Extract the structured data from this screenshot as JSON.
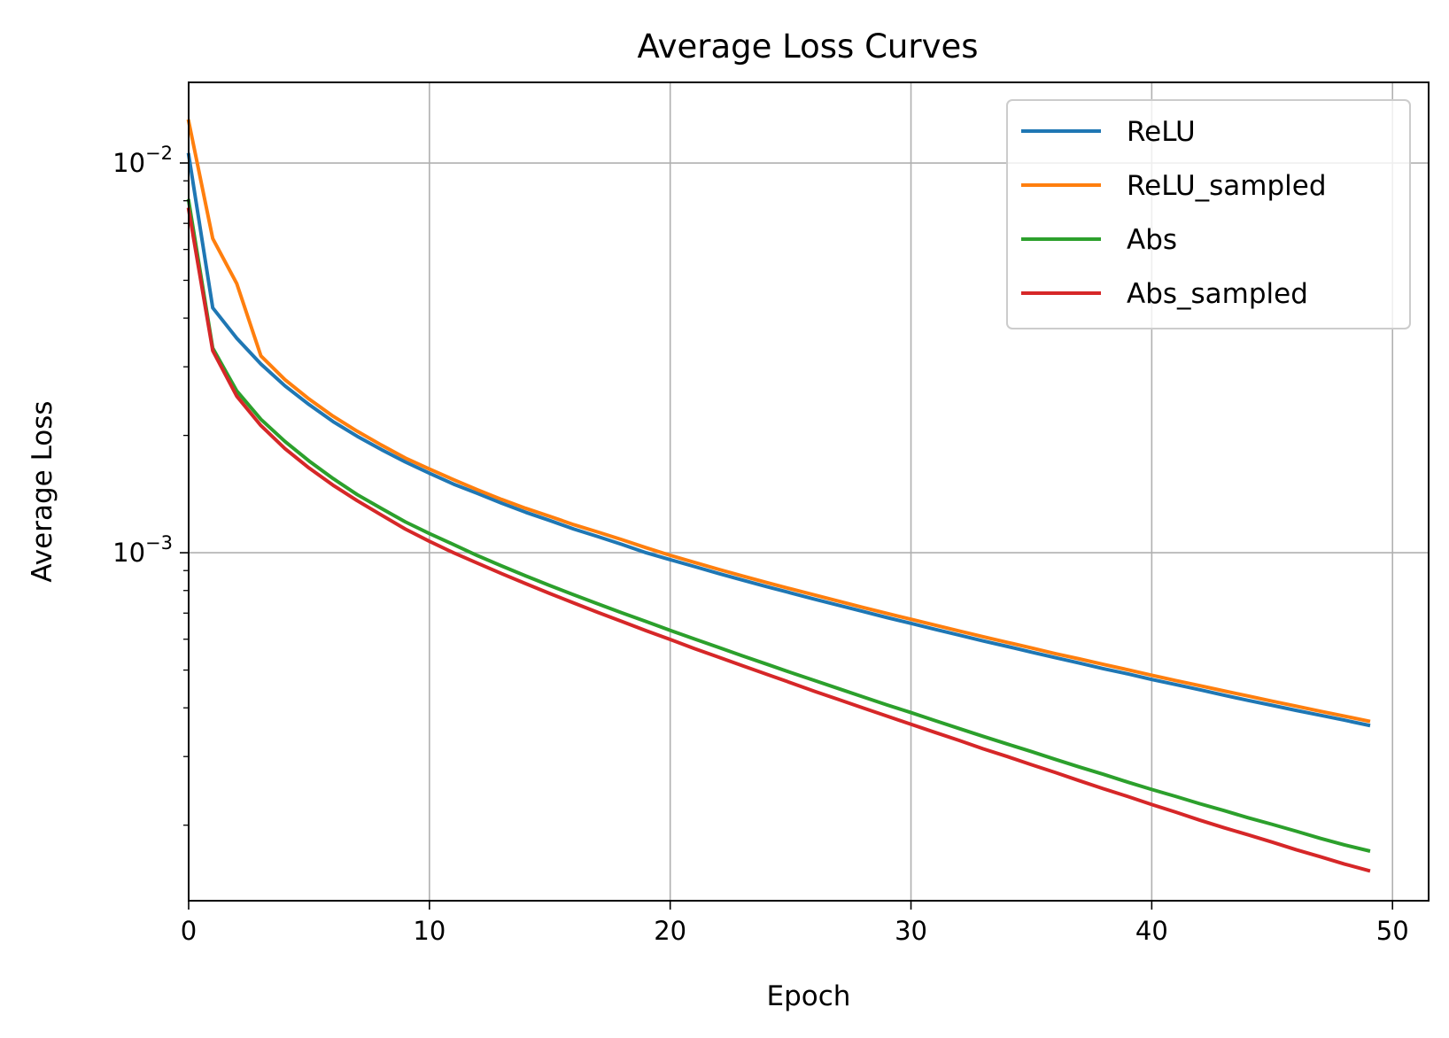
{
  "chart_data": {
    "type": "line",
    "title": "Average Loss Curves",
    "xlabel": "Epoch",
    "ylabel": "Average Loss",
    "yscale": "log",
    "xlim": [
      0,
      51.5
    ],
    "ylim": [
      0.000128,
      0.0161
    ],
    "x_ticks": [
      0,
      10,
      20,
      30,
      40,
      50
    ],
    "x_tick_labels": [
      "0",
      "10",
      "20",
      "30",
      "40",
      "50"
    ],
    "y_major_ticks": [
      0.001,
      0.01
    ],
    "y_tick_labels": [
      {
        "base": "10",
        "exp": "−3"
      },
      {
        "base": "10",
        "exp": "−2"
      }
    ],
    "grid": true,
    "legend_position": "top-right",
    "x": [
      0,
      1,
      2,
      3,
      4,
      5,
      6,
      7,
      8,
      9,
      10,
      11,
      12,
      13,
      14,
      15,
      16,
      17,
      18,
      19,
      20,
      21,
      22,
      23,
      24,
      25,
      26,
      27,
      28,
      29,
      30,
      31,
      32,
      33,
      34,
      35,
      36,
      37,
      38,
      39,
      40,
      41,
      42,
      43,
      44,
      45,
      46,
      47,
      48,
      49
    ],
    "series": [
      {
        "name": "ReLU",
        "color": "#1f77b4",
        "values": [
          0.0105,
          0.00425,
          0.00355,
          0.00305,
          0.00268,
          0.0024,
          0.00217,
          0.00199,
          0.00184,
          0.00171,
          0.0016,
          0.0015,
          0.00142,
          0.00134,
          0.00127,
          0.00121,
          0.00115,
          0.0011,
          0.00105,
          0.001,
          0.00096,
          0.000922,
          0.000885,
          0.000851,
          0.000819,
          0.000789,
          0.00076,
          0.000733,
          0.000707,
          0.000682,
          0.000659,
          0.000636,
          0.000615,
          0.000594,
          0.000575,
          0.000556,
          0.000538,
          0.000521,
          0.000504,
          0.000489,
          0.000473,
          0.000459,
          0.000445,
          0.000431,
          0.000418,
          0.000406,
          0.000394,
          0.000383,
          0.000372,
          0.000361
        ]
      },
      {
        "name": "ReLU_sampled",
        "color": "#ff7f0e",
        "values": [
          0.0128,
          0.0064,
          0.0049,
          0.0032,
          0.00278,
          0.00248,
          0.00224,
          0.00205,
          0.00189,
          0.00175,
          0.00164,
          0.00154,
          0.00145,
          0.00137,
          0.0013,
          0.00124,
          0.00118,
          0.00113,
          0.00108,
          0.00103,
          0.000985,
          0.000945,
          0.000907,
          0.000872,
          0.000839,
          0.000808,
          0.000779,
          0.000751,
          0.000724,
          0.000699,
          0.000675,
          0.000652,
          0.00063,
          0.000609,
          0.000589,
          0.00057,
          0.000551,
          0.000534,
          0.000517,
          0.000501,
          0.000485,
          0.00047,
          0.000456,
          0.000442,
          0.000429,
          0.000416,
          0.000404,
          0.000392,
          0.000381,
          0.00037
        ]
      },
      {
        "name": "Abs",
        "color": "#2ca02c",
        "values": [
          0.008,
          0.00335,
          0.0026,
          0.0022,
          0.00193,
          0.00172,
          0.00155,
          0.00141,
          0.0013,
          0.0012,
          0.00112,
          0.00105,
          0.000983,
          0.000925,
          0.000872,
          0.000824,
          0.00078,
          0.000739,
          0.000701,
          0.000666,
          0.000632,
          0.000601,
          0.000572,
          0.000544,
          0.000518,
          0.000493,
          0.00047,
          0.000448,
          0.000427,
          0.000407,
          0.000389,
          0.000371,
          0.000354,
          0.000338,
          0.000323,
          0.000309,
          0.000295,
          0.000282,
          0.00027,
          0.000258,
          0.000247,
          0.000237,
          0.000227,
          0.000218,
          0.000209,
          0.000201,
          0.000193,
          0.000185,
          0.000178,
          0.000172
        ]
      },
      {
        "name": "Abs_sampled",
        "color": "#d62728",
        "values": [
          0.0076,
          0.0033,
          0.00252,
          0.00212,
          0.00185,
          0.00165,
          0.00149,
          0.00136,
          0.00125,
          0.00115,
          0.00107,
          0.001,
          0.00094,
          0.000884,
          0.000833,
          0.000786,
          0.000743,
          0.000703,
          0.000666,
          0.000631,
          0.000599,
          0.000568,
          0.00054,
          0.000513,
          0.000488,
          0.000464,
          0.000441,
          0.00042,
          0.0004,
          0.000381,
          0.000363,
          0.000346,
          0.00033,
          0.000314,
          0.0003,
          0.000286,
          0.000273,
          0.00026,
          0.000248,
          0.000237,
          0.000226,
          0.000216,
          0.000206,
          0.000197,
          0.000189,
          0.000181,
          0.000173,
          0.000166,
          0.000159,
          0.000153
        ]
      }
    ]
  }
}
